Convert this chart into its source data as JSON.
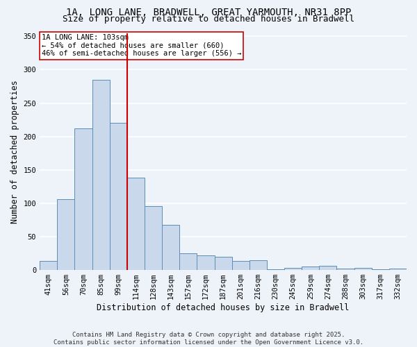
{
  "title1": "1A, LONG LANE, BRADWELL, GREAT YARMOUTH, NR31 8PP",
  "title2": "Size of property relative to detached houses in Bradwell",
  "xlabel": "Distribution of detached houses by size in Bradwell",
  "ylabel": "Number of detached properties",
  "categories": [
    "41sqm",
    "56sqm",
    "70sqm",
    "85sqm",
    "99sqm",
    "114sqm",
    "128sqm",
    "143sqm",
    "157sqm",
    "172sqm",
    "187sqm",
    "201sqm",
    "216sqm",
    "230sqm",
    "245sqm",
    "259sqm",
    "274sqm",
    "288sqm",
    "303sqm",
    "317sqm",
    "332sqm"
  ],
  "values": [
    14,
    106,
    212,
    285,
    220,
    138,
    96,
    68,
    25,
    22,
    20,
    14,
    15,
    1,
    3,
    5,
    6,
    2,
    3,
    1,
    2
  ],
  "bar_color": "#c9d9eb",
  "bar_edge_color": "#5b8db8",
  "vline_x_index": 4,
  "vline_color": "#cc0000",
  "annotation_text": "1A LONG LANE: 103sqm\n← 54% of detached houses are smaller (660)\n46% of semi-detached houses are larger (556) →",
  "annotation_box_color": "white",
  "annotation_box_edge": "#cc0000",
  "ylim": [
    0,
    355
  ],
  "yticks": [
    0,
    50,
    100,
    150,
    200,
    250,
    300,
    350
  ],
  "background_color": "#eef2f9",
  "grid_color": "white",
  "footer": "Contains HM Land Registry data © Crown copyright and database right 2025.\nContains public sector information licensed under the Open Government Licence v3.0.",
  "title_fontsize": 10,
  "subtitle_fontsize": 9,
  "axis_label_fontsize": 8.5,
  "tick_fontsize": 7.5,
  "annotation_fontsize": 7.5,
  "footer_fontsize": 6.5
}
